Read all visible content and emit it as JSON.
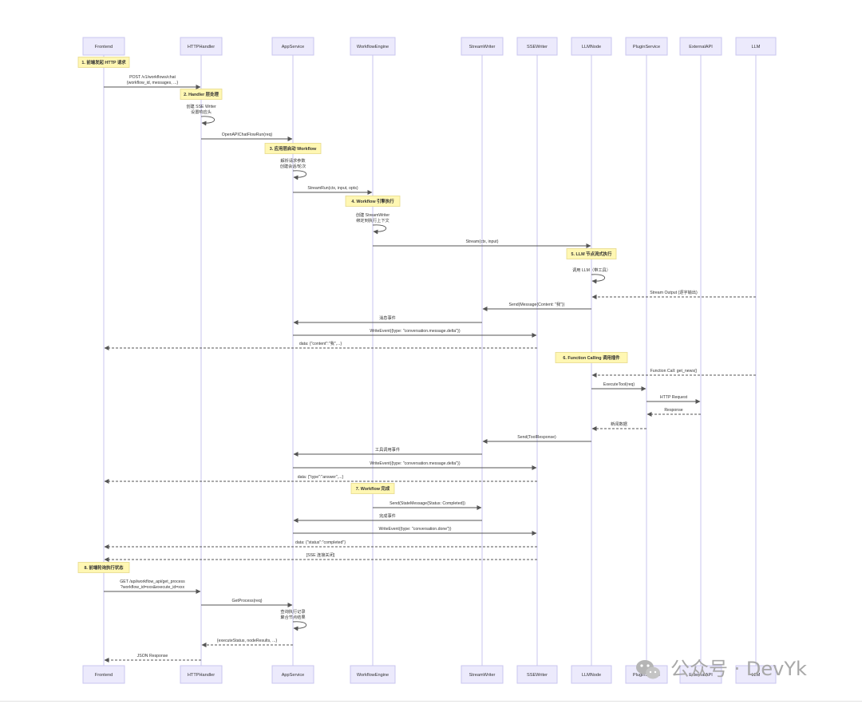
{
  "participants": [
    {
      "id": "frontend",
      "label": "Frontend"
    },
    {
      "id": "httphandler",
      "label": "HTTPHandler"
    },
    {
      "id": "appservice",
      "label": "AppService"
    },
    {
      "id": "workflowengine",
      "label": "WorkflowEngine"
    },
    {
      "id": "streamwriter",
      "label": "StreamWriter"
    },
    {
      "id": "ssewriter",
      "label": "SSEWriter"
    },
    {
      "id": "llmnode",
      "label": "LLMNode"
    },
    {
      "id": "pluginservice",
      "label": "PluginService"
    },
    {
      "id": "externalapi",
      "label": "ExternalAPI"
    },
    {
      "id": "llm",
      "label": "LLM"
    }
  ],
  "notes": [
    {
      "over": "frontend",
      "text": "1. 前端发起 HTTP 请求"
    },
    {
      "over": "httphandler",
      "text": "2. Handler 层处理"
    },
    {
      "over": "appservice",
      "text": "3. 应用层启动 Workflow"
    },
    {
      "over": "workflowengine",
      "text": "4. Workflow 引擎执行"
    },
    {
      "over": "llmnode",
      "text": "5. LLM 节点流式执行"
    },
    {
      "over": "llmnode",
      "text": "6. Function Calling 调用插件"
    },
    {
      "over": "workflowengine",
      "text": "7. Workflow 完成"
    },
    {
      "over": "frontend",
      "text": "8. 前端轮询执行状态"
    }
  ],
  "messages": [
    {
      "from": "frontend",
      "to": "httphandler",
      "lines": [
        "POST /v1/workflows/chat",
        "{workflow_id, messages, ...}"
      ],
      "dashed": false
    },
    {
      "from": "httphandler",
      "to": "httphandler",
      "lines": [
        "创建 SSE Writer",
        "设置响应头"
      ],
      "dashed": false
    },
    {
      "from": "httphandler",
      "to": "appservice",
      "lines": [
        "OpenAPIChatFlowRun(req)"
      ],
      "dashed": false
    },
    {
      "from": "appservice",
      "to": "appservice",
      "lines": [
        "解析请求参数",
        "创建会话/轮次"
      ],
      "dashed": false
    },
    {
      "from": "appservice",
      "to": "workflowengine",
      "lines": [
        "StreamRun(ctx, input, opts)"
      ],
      "dashed": false
    },
    {
      "from": "workflowengine",
      "to": "workflowengine",
      "lines": [
        "创建 StreamWriter",
        "绑定到执行上下文"
      ],
      "dashed": false
    },
    {
      "from": "workflowengine",
      "to": "llmnode",
      "lines": [
        "Stream(ctx, input)"
      ],
      "dashed": false
    },
    {
      "from": "llmnode",
      "to": "llmnode",
      "lines": [
        "调用 LLM（带工具）"
      ],
      "dashed": false
    },
    {
      "from": "llm",
      "to": "llmnode",
      "lines": [
        "Stream Output (逐字输出)"
      ],
      "dashed": true
    },
    {
      "from": "llmnode",
      "to": "streamwriter",
      "lines": [
        "Send(Message{Content: \"我\"})"
      ],
      "dashed": false
    },
    {
      "from": "streamwriter",
      "to": "appservice",
      "lines": [
        "消息事件"
      ],
      "dashed": false
    },
    {
      "from": "appservice",
      "to": "ssewriter",
      "lines": [
        "WriteEvent({type: \"conversation.message.delta\"})"
      ],
      "dashed": false
    },
    {
      "from": "ssewriter",
      "to": "frontend",
      "lines": [
        "data: {\"content\":\"我\",...}"
      ],
      "dashed": true
    },
    {
      "from": "llm",
      "to": "llmnode",
      "lines": [
        "Function Call: get_news()"
      ],
      "dashed": true
    },
    {
      "from": "llmnode",
      "to": "pluginservice",
      "lines": [
        "ExecuteTool(req)"
      ],
      "dashed": false
    },
    {
      "from": "pluginservice",
      "to": "externalapi",
      "lines": [
        "HTTP Request"
      ],
      "dashed": false
    },
    {
      "from": "externalapi",
      "to": "pluginservice",
      "lines": [
        "Response"
      ],
      "dashed": true
    },
    {
      "from": "pluginservice",
      "to": "llmnode",
      "lines": [
        "新闻数据"
      ],
      "dashed": true
    },
    {
      "from": "llmnode",
      "to": "streamwriter",
      "lines": [
        "Send(ToolResponse)"
      ],
      "dashed": false
    },
    {
      "from": "streamwriter",
      "to": "appservice",
      "lines": [
        "工具调用事件"
      ],
      "dashed": false
    },
    {
      "from": "appservice",
      "to": "ssewriter",
      "lines": [
        "WriteEvent({type: \"conversation.message.delta\"})"
      ],
      "dashed": false
    },
    {
      "from": "ssewriter",
      "to": "frontend",
      "lines": [
        "data: {\"type\":\"answer\",...}"
      ],
      "dashed": true
    },
    {
      "from": "workflowengine",
      "to": "streamwriter",
      "lines": [
        "Send(StateMessage{Status: Completed})"
      ],
      "dashed": false
    },
    {
      "from": "streamwriter",
      "to": "appservice",
      "lines": [
        "完成事件"
      ],
      "dashed": false
    },
    {
      "from": "appservice",
      "to": "ssewriter",
      "lines": [
        "WriteEvent({type: \"conversation.done\"})"
      ],
      "dashed": false
    },
    {
      "from": "ssewriter",
      "to": "frontend",
      "lines": [
        "data: {\"status\":\"completed\"}"
      ],
      "dashed": true
    },
    {
      "from": "ssewriter",
      "to": "frontend",
      "lines": [
        "[SSE 连接关闭]"
      ],
      "dashed": true
    },
    {
      "from": "frontend",
      "to": "httphandler",
      "lines": [
        "GET /api/workflow_api/get_process",
        "?workflow_id=xxx&execute_id=xxx"
      ],
      "dashed": false
    },
    {
      "from": "httphandler",
      "to": "appservice",
      "lines": [
        "GetProcess(req)"
      ],
      "dashed": false
    },
    {
      "from": "appservice",
      "to": "appservice",
      "lines": [
        "查询执行记录",
        "聚合节点结果"
      ],
      "dashed": false
    },
    {
      "from": "appservice",
      "to": "httphandler",
      "lines": [
        "{executeStatus, nodeResults, ...}"
      ],
      "dashed": true
    },
    {
      "from": "httphandler",
      "to": "frontend",
      "lines": [
        "JSON Response"
      ],
      "dashed": true
    }
  ],
  "watermark": {
    "text": "公众号 · DevYk"
  },
  "colors": {
    "participant_fill": "#eceafc",
    "participant_stroke": "#c9c5ef",
    "note_fill": "#fff7b3",
    "note_stroke": "#e6d98a",
    "arrow": "#555555"
  }
}
